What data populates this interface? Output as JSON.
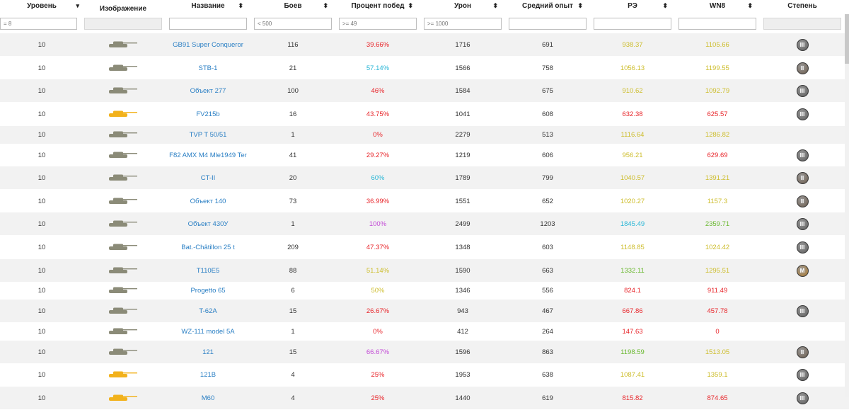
{
  "columns": [
    {
      "label": "Уровень",
      "sort": "▾"
    },
    {
      "label": "Изображение",
      "sort": ""
    },
    {
      "label": "Название",
      "sort": "⬍"
    },
    {
      "label": "Боев",
      "sort": "⬍"
    },
    {
      "label": "Процент побед",
      "sort": "⬍"
    },
    {
      "label": "Урон",
      "sort": "⬍"
    },
    {
      "label": "Средний опыт",
      "sort": "⬍"
    },
    {
      "label": "РЭ",
      "sort": "⬍"
    },
    {
      "label": "WN8",
      "sort": "⬍"
    },
    {
      "label": "Степень",
      "sort": ""
    }
  ],
  "filters": {
    "level": "= 8",
    "name": "",
    "battles": "< 500",
    "winrate": ">= 49",
    "damage": ">= 1000",
    "avg_exp": "",
    "re": "",
    "wn8": ""
  },
  "colors": {
    "name_link": "#2a7fc4",
    "red": "#e8252a",
    "cyan": "#29b6d6",
    "purple": "#c24ad6",
    "olive": "#cdbd2c",
    "green": "#6ab830",
    "tank_gray": "#8b8b78",
    "tank_gold": "#f2b21c"
  },
  "rows": [
    {
      "level": "10",
      "tank_icon": "tank-icon",
      "tank_color": "gray",
      "name": "GB91 Super Conqueror",
      "battles": "116",
      "winrate": "39.66%",
      "wr_color": "red",
      "damage": "1716",
      "exp": "691",
      "re": "938.37",
      "re_color": "olive",
      "wn8": "1105.66",
      "wn8_color": "olive",
      "badge": "III"
    },
    {
      "level": "10",
      "tank_icon": "tank-icon",
      "tank_color": "gray",
      "name": "STB-1",
      "battles": "21",
      "winrate": "57.14%",
      "wr_color": "cyan",
      "damage": "1566",
      "exp": "758",
      "re": "1056.13",
      "re_color": "olive",
      "wn8": "1199.55",
      "wn8_color": "olive",
      "badge": "II"
    },
    {
      "level": "10",
      "tank_icon": "tank-icon",
      "tank_color": "gray",
      "name": "Объект 277",
      "battles": "100",
      "winrate": "46%",
      "wr_color": "red",
      "damage": "1584",
      "exp": "675",
      "re": "910.62",
      "re_color": "olive",
      "wn8": "1092.79",
      "wn8_color": "olive",
      "badge": "III"
    },
    {
      "level": "10",
      "tank_icon": "tank-icon",
      "tank_color": "gold",
      "name": "FV215b",
      "battles": "16",
      "winrate": "43.75%",
      "wr_color": "red",
      "damage": "1041",
      "exp": "608",
      "re": "632.38",
      "re_color": "red",
      "wn8": "625.57",
      "wn8_color": "red",
      "badge": "III"
    },
    {
      "level": "10",
      "tank_icon": "tank-icon",
      "tank_color": "gray",
      "name": "TVP T 50/51",
      "battles": "1",
      "winrate": "0%",
      "wr_color": "red",
      "damage": "2279",
      "exp": "513",
      "re": "1116.64",
      "re_color": "olive",
      "wn8": "1286.82",
      "wn8_color": "olive",
      "badge": ""
    },
    {
      "level": "10",
      "tank_icon": "tank-icon",
      "tank_color": "gray",
      "name": "F82 AMX M4 Mle1949 Ter",
      "battles": "41",
      "winrate": "29.27%",
      "wr_color": "red",
      "damage": "1219",
      "exp": "606",
      "re": "956.21",
      "re_color": "olive",
      "wn8": "629.69",
      "wn8_color": "red",
      "badge": "III"
    },
    {
      "level": "10",
      "tank_icon": "tank-icon",
      "tank_color": "gray",
      "name": "CT-II",
      "battles": "20",
      "winrate": "60%",
      "wr_color": "cyan",
      "damage": "1789",
      "exp": "799",
      "re": "1040.57",
      "re_color": "olive",
      "wn8": "1391.21",
      "wn8_color": "olive",
      "badge": "II"
    },
    {
      "level": "10",
      "tank_icon": "tank-icon",
      "tank_color": "gray",
      "name": "Объект 140",
      "battles": "73",
      "winrate": "36.99%",
      "wr_color": "red",
      "damage": "1551",
      "exp": "652",
      "re": "1020.27",
      "re_color": "olive",
      "wn8": "1157.3",
      "wn8_color": "olive",
      "badge": "II"
    },
    {
      "level": "10",
      "tank_icon": "tank-icon",
      "tank_color": "gray",
      "name": "Объект 430У",
      "battles": "1",
      "winrate": "100%",
      "wr_color": "purple",
      "damage": "2499",
      "exp": "1203",
      "re": "1845.49",
      "re_color": "cyan",
      "wn8": "2359.71",
      "wn8_color": "green",
      "badge": "III"
    },
    {
      "level": "10",
      "tank_icon": "tank-icon",
      "tank_color": "gray",
      "name": "Bat.-Châtillon 25 t",
      "battles": "209",
      "winrate": "47.37%",
      "wr_color": "red",
      "damage": "1348",
      "exp": "603",
      "re": "1148.85",
      "re_color": "olive",
      "wn8": "1024.42",
      "wn8_color": "olive",
      "badge": "III"
    },
    {
      "level": "10",
      "tank_icon": "tank-icon",
      "tank_color": "gray",
      "name": "T110E5",
      "battles": "88",
      "winrate": "51.14%",
      "wr_color": "olive",
      "damage": "1590",
      "exp": "663",
      "re": "1332.11",
      "re_color": "green",
      "wn8": "1295.51",
      "wn8_color": "olive",
      "badge": "M"
    },
    {
      "level": "10",
      "tank_icon": "tank-icon",
      "tank_color": "gray",
      "name": "Progetto 65",
      "battles": "6",
      "winrate": "50%",
      "wr_color": "olive",
      "damage": "1346",
      "exp": "556",
      "re": "824.1",
      "re_color": "red",
      "wn8": "911.49",
      "wn8_color": "red",
      "badge": ""
    },
    {
      "level": "10",
      "tank_icon": "tank-icon",
      "tank_color": "gray",
      "name": "T-62A",
      "battles": "15",
      "winrate": "26.67%",
      "wr_color": "red",
      "damage": "943",
      "exp": "467",
      "re": "667.86",
      "re_color": "red",
      "wn8": "457.78",
      "wn8_color": "red",
      "badge": "III"
    },
    {
      "level": "10",
      "tank_icon": "tank-icon",
      "tank_color": "gray",
      "name": "WZ-111 model 5A",
      "battles": "1",
      "winrate": "0%",
      "wr_color": "red",
      "damage": "412",
      "exp": "264",
      "re": "147.63",
      "re_color": "red",
      "wn8": "0",
      "wn8_color": "red",
      "badge": ""
    },
    {
      "level": "10",
      "tank_icon": "tank-icon",
      "tank_color": "gray",
      "name": "121",
      "battles": "15",
      "winrate": "66.67%",
      "wr_color": "purple",
      "damage": "1596",
      "exp": "863",
      "re": "1198.59",
      "re_color": "green",
      "wn8": "1513.05",
      "wn8_color": "olive",
      "badge": "II"
    },
    {
      "level": "10",
      "tank_icon": "tank-icon",
      "tank_color": "gold",
      "name": "121B",
      "battles": "4",
      "winrate": "25%",
      "wr_color": "red",
      "damage": "1953",
      "exp": "638",
      "re": "1087.41",
      "re_color": "olive",
      "wn8": "1359.1",
      "wn8_color": "olive",
      "badge": "III"
    },
    {
      "level": "10",
      "tank_icon": "tank-icon",
      "tank_color": "gold",
      "name": "M60",
      "battles": "4",
      "winrate": "25%",
      "wr_color": "red",
      "damage": "1440",
      "exp": "619",
      "re": "815.82",
      "re_color": "red",
      "wn8": "874.65",
      "wn8_color": "red",
      "badge": "III"
    }
  ]
}
